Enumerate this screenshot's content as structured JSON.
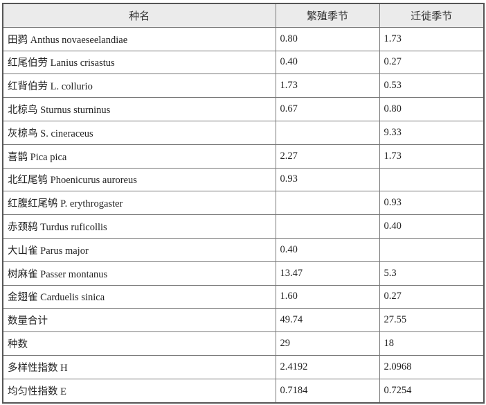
{
  "table": {
    "headers": [
      "种名",
      "繁殖季节",
      "迁徙季节"
    ],
    "rows": [
      [
        "田鹨 Anthus novaeseelandiae",
        "0.80",
        "1.73"
      ],
      [
        "红尾伯劳 Lanius crisastus",
        "0.40",
        "0.27"
      ],
      [
        "红背伯劳 L. collurio",
        "1.73",
        "0.53"
      ],
      [
        "北椋鸟 Sturnus sturninus",
        "0.67",
        "0.80"
      ],
      [
        "灰椋鸟 S. cineraceus",
        "",
        "9.33"
      ],
      [
        "喜鹊 Pica pica",
        "2.27",
        "1.73"
      ],
      [
        "北红尾鸲 Phoenicurus auroreus",
        "0.93",
        ""
      ],
      [
        "红腹红尾鸲 P. erythrogaster",
        "",
        "0.93"
      ],
      [
        "赤颈鸫 Turdus ruficollis",
        "",
        "0.40"
      ],
      [
        "大山雀 Parus major",
        "0.40",
        ""
      ],
      [
        "树麻雀 Passer montanus",
        "13.47",
        "5.3"
      ],
      [
        "金翅雀 Carduelis sinica",
        "1.60",
        "0.27"
      ],
      [
        "数量合计",
        "49.74",
        "27.55"
      ],
      [
        "种数",
        "29",
        "18"
      ],
      [
        "多样性指数 H",
        "2.4192",
        "2.0968"
      ],
      [
        "均匀性指数 E",
        "0.7184",
        "0.7254"
      ]
    ]
  }
}
